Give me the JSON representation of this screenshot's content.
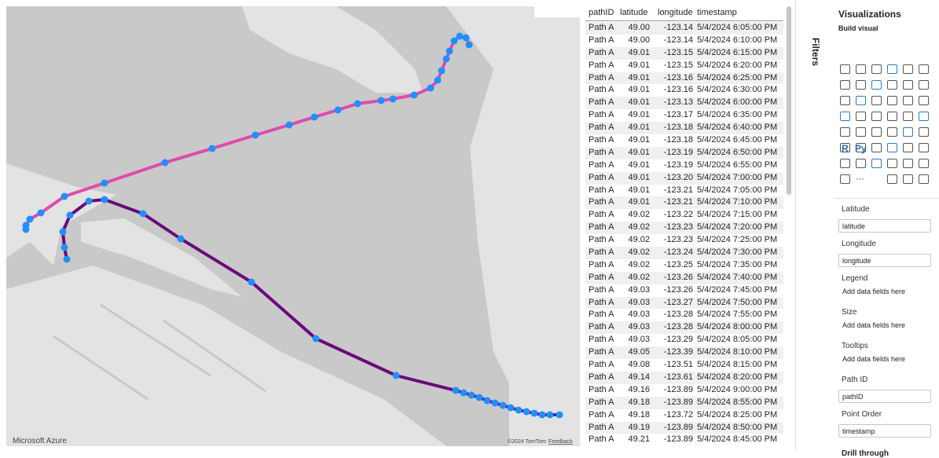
{
  "map": {
    "attribution": "Microsoft Azure",
    "copyright": "©2024 TomTom",
    "feedback": "Feedback"
  },
  "table": {
    "columns": [
      "pathID",
      "latitude",
      "longitude",
      "timestamp"
    ],
    "rows": [
      [
        "Path A",
        "49.00",
        "-123.14",
        "5/4/2024 6:05:00 PM"
      ],
      [
        "Path A",
        "49.00",
        "-123.14",
        "5/4/2024 6:10:00 PM"
      ],
      [
        "Path A",
        "49.01",
        "-123.15",
        "5/4/2024 6:15:00 PM"
      ],
      [
        "Path A",
        "49.01",
        "-123.15",
        "5/4/2024 6:20:00 PM"
      ],
      [
        "Path A",
        "49.01",
        "-123.16",
        "5/4/2024 6:25:00 PM"
      ],
      [
        "Path A",
        "49.01",
        "-123.16",
        "5/4/2024 6:30:00 PM"
      ],
      [
        "Path A",
        "49.01",
        "-123.13",
        "5/4/2024 6:00:00 PM"
      ],
      [
        "Path A",
        "49.01",
        "-123.17",
        "5/4/2024 6:35:00 PM"
      ],
      [
        "Path A",
        "49.01",
        "-123.18",
        "5/4/2024 6:40:00 PM"
      ],
      [
        "Path A",
        "49.01",
        "-123.18",
        "5/4/2024 6:45:00 PM"
      ],
      [
        "Path A",
        "49.01",
        "-123.19",
        "5/4/2024 6:50:00 PM"
      ],
      [
        "Path A",
        "49.01",
        "-123.19",
        "5/4/2024 6:55:00 PM"
      ],
      [
        "Path A",
        "49.01",
        "-123.20",
        "5/4/2024 7:00:00 PM"
      ],
      [
        "Path A",
        "49.01",
        "-123.21",
        "5/4/2024 7:05:00 PM"
      ],
      [
        "Path A",
        "49.01",
        "-123.21",
        "5/4/2024 7:10:00 PM"
      ],
      [
        "Path A",
        "49.02",
        "-123.22",
        "5/4/2024 7:15:00 PM"
      ],
      [
        "Path A",
        "49.02",
        "-123.23",
        "5/4/2024 7:20:00 PM"
      ],
      [
        "Path A",
        "49.02",
        "-123.23",
        "5/4/2024 7:25:00 PM"
      ],
      [
        "Path A",
        "49.02",
        "-123.24",
        "5/4/2024 7:30:00 PM"
      ],
      [
        "Path A",
        "49.02",
        "-123.25",
        "5/4/2024 7:35:00 PM"
      ],
      [
        "Path A",
        "49.02",
        "-123.26",
        "5/4/2024 7:40:00 PM"
      ],
      [
        "Path A",
        "49.03",
        "-123.26",
        "5/4/2024 7:45:00 PM"
      ],
      [
        "Path A",
        "49.03",
        "-123.27",
        "5/4/2024 7:50:00 PM"
      ],
      [
        "Path A",
        "49.03",
        "-123.28",
        "5/4/2024 7:55:00 PM"
      ],
      [
        "Path A",
        "49.03",
        "-123.28",
        "5/4/2024 8:00:00 PM"
      ],
      [
        "Path A",
        "49.03",
        "-123.29",
        "5/4/2024 8:05:00 PM"
      ],
      [
        "Path A",
        "49.05",
        "-123.39",
        "5/4/2024 8:10:00 PM"
      ],
      [
        "Path A",
        "49.08",
        "-123.51",
        "5/4/2024 8:15:00 PM"
      ],
      [
        "Path A",
        "49.14",
        "-123.61",
        "5/4/2024 8:20:00 PM"
      ],
      [
        "Path A",
        "49.16",
        "-123.89",
        "5/4/2024 9:00:00 PM"
      ],
      [
        "Path A",
        "49.18",
        "-123.89",
        "5/4/2024 8:55:00 PM"
      ],
      [
        "Path A",
        "49.18",
        "-123.72",
        "5/4/2024 8:25:00 PM"
      ],
      [
        "Path A",
        "49.19",
        "-123.89",
        "5/4/2024 8:50:00 PM"
      ],
      [
        "Path A",
        "49.21",
        "-123.89",
        "5/4/2024 8:45:00 PM"
      ]
    ]
  },
  "filters": {
    "title": "Filters"
  },
  "visualizations": {
    "title": "Visualizations",
    "subtitle": "Build visual",
    "icon_r": "R",
    "icon_py": "Py",
    "more": "···",
    "wells": [
      {
        "label": "Latitude",
        "field": "latitude"
      },
      {
        "label": "Longitude",
        "field": "longitude"
      },
      {
        "label": "Legend",
        "placeholder": "Add data fields here"
      },
      {
        "label": "Size",
        "placeholder": "Add data fields here"
      },
      {
        "label": "Tooltips",
        "placeholder": "Add data fields here"
      },
      {
        "label": "Path ID",
        "field": "pathID"
      },
      {
        "label": "Point Order",
        "field": "timestamp"
      }
    ],
    "drill": "Drill through"
  }
}
